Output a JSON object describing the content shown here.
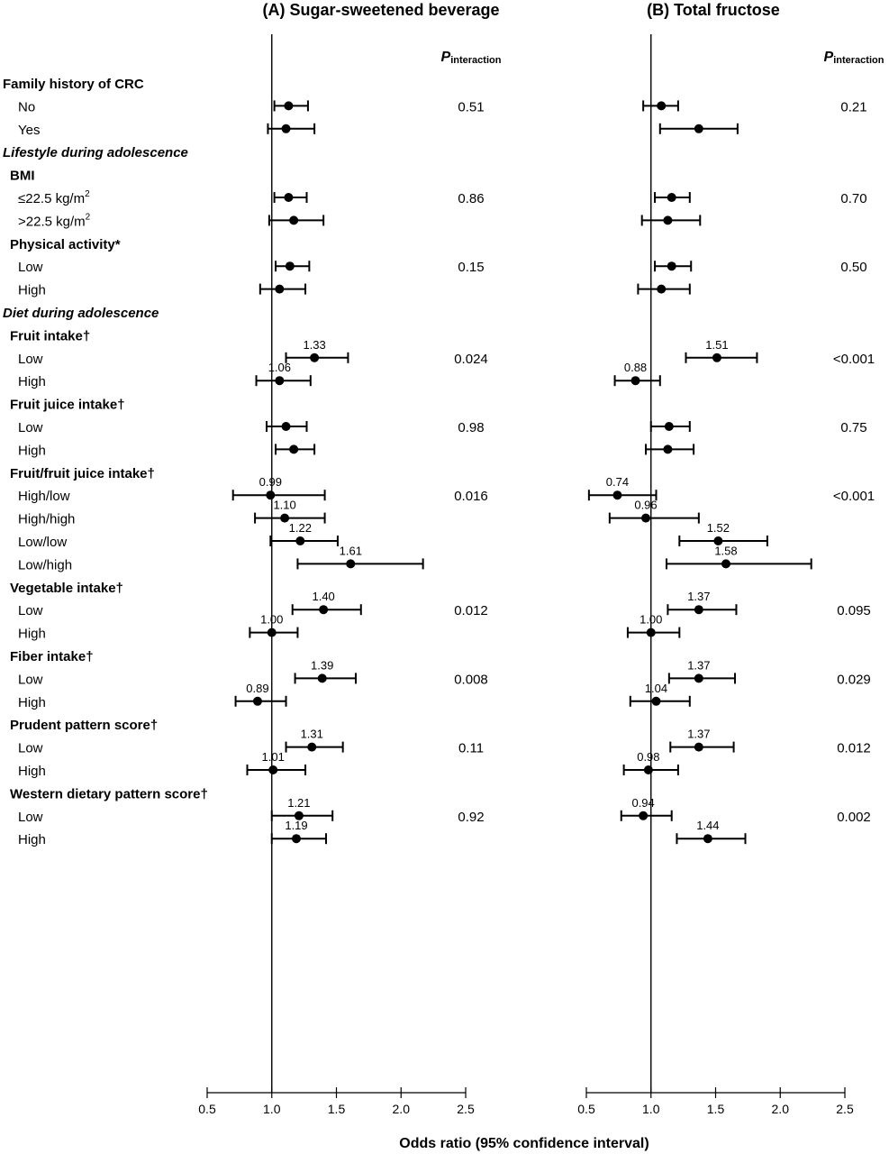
{
  "chart_data": {
    "type": "forest",
    "xlabel": "Odds ratio (95% confidence interval)",
    "pint_label_main": "P",
    "pint_label_sub": "interaction",
    "xticks": [
      0.5,
      1.0,
      1.5,
      2.0,
      2.5
    ],
    "xtick_labels": [
      "0.5",
      "1.0",
      "1.5",
      "2.0",
      "2.5"
    ],
    "xlim": [
      0.5,
      2.5
    ],
    "reference": 1.0,
    "panels": [
      {
        "key": "A",
        "title": "(A) Sugar-sweetened beverage"
      },
      {
        "key": "B",
        "title": "(B) Total fructose"
      }
    ],
    "rows": [
      {
        "kind": "header",
        "style": "bold",
        "label": "Family history of CRC"
      },
      {
        "kind": "data",
        "label": "No",
        "A": {
          "or": 1.13,
          "lo": 1.02,
          "hi": 1.28,
          "p": "0.51"
        },
        "B": {
          "or": 1.08,
          "lo": 0.94,
          "hi": 1.21,
          "p": "0.21"
        }
      },
      {
        "kind": "data",
        "label": "Yes",
        "A": {
          "or": 1.11,
          "lo": 0.97,
          "hi": 1.33
        },
        "B": {
          "or": 1.37,
          "lo": 1.07,
          "hi": 1.67
        }
      },
      {
        "kind": "header",
        "style": "italic",
        "label": "Lifestyle during adolescence"
      },
      {
        "kind": "header",
        "style": "bold",
        "label": "BMI"
      },
      {
        "kind": "data",
        "label": "≤22.5 kg/m",
        "sup": "2",
        "A": {
          "or": 1.13,
          "lo": 1.02,
          "hi": 1.27,
          "p": "0.86"
        },
        "B": {
          "or": 1.16,
          "lo": 1.03,
          "hi": 1.3,
          "p": "0.70"
        }
      },
      {
        "kind": "data",
        "label": ">22.5 kg/m",
        "sup": "2",
        "A": {
          "or": 1.17,
          "lo": 0.98,
          "hi": 1.4
        },
        "B": {
          "or": 1.13,
          "lo": 0.93,
          "hi": 1.38
        }
      },
      {
        "kind": "header",
        "style": "bold",
        "label": "Physical activity*"
      },
      {
        "kind": "data",
        "label": "Low",
        "A": {
          "or": 1.14,
          "lo": 1.03,
          "hi": 1.29,
          "p": "0.15"
        },
        "B": {
          "or": 1.16,
          "lo": 1.03,
          "hi": 1.31,
          "p": "0.50"
        }
      },
      {
        "kind": "data",
        "label": "High",
        "A": {
          "or": 1.06,
          "lo": 0.91,
          "hi": 1.26
        },
        "B": {
          "or": 1.08,
          "lo": 0.9,
          "hi": 1.3
        }
      },
      {
        "kind": "header",
        "style": "italic",
        "label": "Diet during adolescence"
      },
      {
        "kind": "header",
        "style": "bold",
        "label": "Fruit intake†"
      },
      {
        "kind": "data",
        "label": "Low",
        "A": {
          "or": 1.33,
          "lo": 1.11,
          "hi": 1.59,
          "p": "0.024",
          "show": "1.33"
        },
        "B": {
          "or": 1.51,
          "lo": 1.27,
          "hi": 1.82,
          "p": "<0.001",
          "show": "1.51"
        }
      },
      {
        "kind": "data",
        "label": "High",
        "A": {
          "or": 1.06,
          "lo": 0.88,
          "hi": 1.3,
          "show": "1.06"
        },
        "B": {
          "or": 0.88,
          "lo": 0.72,
          "hi": 1.07,
          "show": "0.88"
        }
      },
      {
        "kind": "header",
        "style": "bold",
        "label": "Fruit juice intake†"
      },
      {
        "kind": "data",
        "label": "Low",
        "A": {
          "or": 1.11,
          "lo": 0.96,
          "hi": 1.27,
          "p": "0.98"
        },
        "B": {
          "or": 1.14,
          "lo": 1.0,
          "hi": 1.3,
          "p": "0.75"
        }
      },
      {
        "kind": "data",
        "label": "High",
        "A": {
          "or": 1.17,
          "lo": 1.03,
          "hi": 1.33
        },
        "B": {
          "or": 1.13,
          "lo": 0.96,
          "hi": 1.33
        }
      },
      {
        "kind": "header",
        "style": "bold",
        "label": "Fruit/fruit juice intake†"
      },
      {
        "kind": "data",
        "label": "High/low",
        "A": {
          "or": 0.99,
          "lo": 0.7,
          "hi": 1.41,
          "p": "0.016",
          "show": "0.99"
        },
        "B": {
          "or": 0.74,
          "lo": 0.52,
          "hi": 1.04,
          "p": "<0.001",
          "show": "0.74"
        }
      },
      {
        "kind": "data",
        "label": "High/high",
        "A": {
          "or": 1.1,
          "lo": 0.87,
          "hi": 1.41,
          "show": "1.10"
        },
        "B": {
          "or": 0.96,
          "lo": 0.68,
          "hi": 1.37,
          "show": "0.96"
        }
      },
      {
        "kind": "data",
        "label": "Low/low",
        "A": {
          "or": 1.22,
          "lo": 0.99,
          "hi": 1.51,
          "show": "1.22"
        },
        "B": {
          "or": 1.52,
          "lo": 1.22,
          "hi": 1.9,
          "show": "1.52"
        }
      },
      {
        "kind": "data",
        "label": "Low/high",
        "A": {
          "or": 1.61,
          "lo": 1.2,
          "hi": 2.17,
          "show": "1.61"
        },
        "B": {
          "or": 1.58,
          "lo": 1.12,
          "hi": 2.24,
          "show": "1.58"
        }
      },
      {
        "kind": "header",
        "style": "bold",
        "label": "Vegetable intake†"
      },
      {
        "kind": "data",
        "label": "Low",
        "A": {
          "or": 1.4,
          "lo": 1.16,
          "hi": 1.69,
          "p": "0.012",
          "show": "1.40"
        },
        "B": {
          "or": 1.37,
          "lo": 1.13,
          "hi": 1.66,
          "p": "0.095",
          "show": "1.37"
        }
      },
      {
        "kind": "data",
        "label": "High",
        "A": {
          "or": 1.0,
          "lo": 0.83,
          "hi": 1.2,
          "show": "1.00"
        },
        "B": {
          "or": 1.0,
          "lo": 0.82,
          "hi": 1.22,
          "show": "1.00"
        }
      },
      {
        "kind": "header",
        "style": "bold",
        "label": "Fiber intake†"
      },
      {
        "kind": "data",
        "label": "Low",
        "A": {
          "or": 1.39,
          "lo": 1.18,
          "hi": 1.65,
          "p": "0.008",
          "show": "1.39"
        },
        "B": {
          "or": 1.37,
          "lo": 1.14,
          "hi": 1.65,
          "p": "0.029",
          "show": "1.37"
        }
      },
      {
        "kind": "data",
        "label": "High",
        "A": {
          "or": 0.89,
          "lo": 0.72,
          "hi": 1.11,
          "show": "0.89"
        },
        "B": {
          "or": 1.04,
          "lo": 0.84,
          "hi": 1.3,
          "show": "1.04"
        }
      },
      {
        "kind": "header",
        "style": "bold",
        "label": "Prudent pattern score†"
      },
      {
        "kind": "data",
        "label": "Low",
        "A": {
          "or": 1.31,
          "lo": 1.11,
          "hi": 1.55,
          "p": "0.11",
          "show": "1.31"
        },
        "B": {
          "or": 1.37,
          "lo": 1.15,
          "hi": 1.64,
          "p": "0.012",
          "show": "1.37"
        }
      },
      {
        "kind": "data",
        "label": "High",
        "A": {
          "or": 1.01,
          "lo": 0.81,
          "hi": 1.26,
          "show": "1.01"
        },
        "B": {
          "or": 0.98,
          "lo": 0.79,
          "hi": 1.21,
          "show": "0.98"
        }
      },
      {
        "kind": "header",
        "style": "bold",
        "label": "Western dietary pattern score†"
      },
      {
        "kind": "data",
        "label": "Low",
        "A": {
          "or": 1.21,
          "lo": 1.0,
          "hi": 1.47,
          "p": "0.92",
          "show": "1.21"
        },
        "B": {
          "or": 0.94,
          "lo": 0.77,
          "hi": 1.16,
          "p": "0.002",
          "show": "0.94"
        }
      },
      {
        "kind": "data",
        "label": "High",
        "A": {
          "or": 1.19,
          "lo": 1.0,
          "hi": 1.42,
          "show": "1.19"
        },
        "B": {
          "or": 1.44,
          "lo": 1.2,
          "hi": 1.73,
          "show": "1.44"
        }
      }
    ]
  }
}
